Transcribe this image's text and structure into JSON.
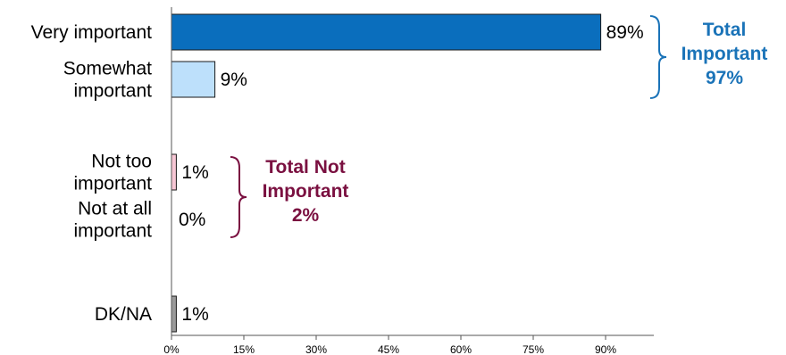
{
  "chart_data": {
    "type": "bar",
    "orientation": "horizontal",
    "categories": [
      [
        "Very important"
      ],
      [
        "Somewhat",
        "important"
      ],
      [
        "Not too",
        "important"
      ],
      [
        "Not at all",
        "important"
      ],
      [
        "DK/NA"
      ]
    ],
    "values": [
      89,
      9,
      1,
      0,
      1
    ],
    "value_labels": [
      "89%",
      "9%",
      "1%",
      "0%",
      "1%"
    ],
    "bar_colors": [
      "#0a6ebd",
      "#bde0fb",
      "#f7c6d4",
      "#ffffff",
      "#9a9a9a"
    ],
    "xlim": [
      0,
      100
    ],
    "xticks": [
      0,
      15,
      30,
      45,
      60,
      75,
      90
    ],
    "xtick_labels": [
      "0%",
      "15%",
      "30%",
      "45%",
      "60%",
      "75%",
      "90%"
    ],
    "grid": false,
    "annotations": [
      {
        "lines": [
          "Total",
          "Important",
          "97%"
        ],
        "color": "#1a73b8",
        "brackets_categories": [
          0,
          1
        ]
      },
      {
        "lines": [
          "Total Not",
          "Important",
          "2%"
        ],
        "color": "#7a1040",
        "brackets_categories": [
          2,
          3
        ]
      }
    ]
  }
}
